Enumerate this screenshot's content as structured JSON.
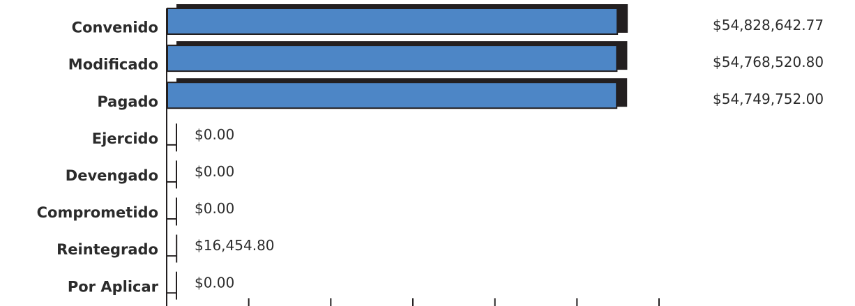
{
  "chart_data": {
    "type": "bar",
    "orientation": "horizontal",
    "title": "",
    "xlabel": "",
    "ylabel": "",
    "categories": [
      "Convenido",
      "Modificado",
      "Pagado",
      "Ejercido",
      "Devengado",
      "Comprometido",
      "Reintegrado",
      "Por Aplicar"
    ],
    "values": [
      54828642.77,
      54768520.8,
      54749752.0,
      0,
      0,
      0,
      16454.8,
      0
    ],
    "value_labels": [
      "$54,828,642.77",
      "$54,768,520.80",
      "$54,749,752.00",
      "$0.00",
      "$0.00",
      "$0.00",
      "$16,454.80",
      "$0.00"
    ],
    "xlim": [
      0,
      60000000
    ],
    "x_ticks": [
      0,
      10000000,
      20000000,
      30000000,
      40000000,
      50000000,
      60000000
    ],
    "bar_color": "#4d86c6",
    "shadow_color": "#231f20",
    "grid": false,
    "legend": "none"
  }
}
